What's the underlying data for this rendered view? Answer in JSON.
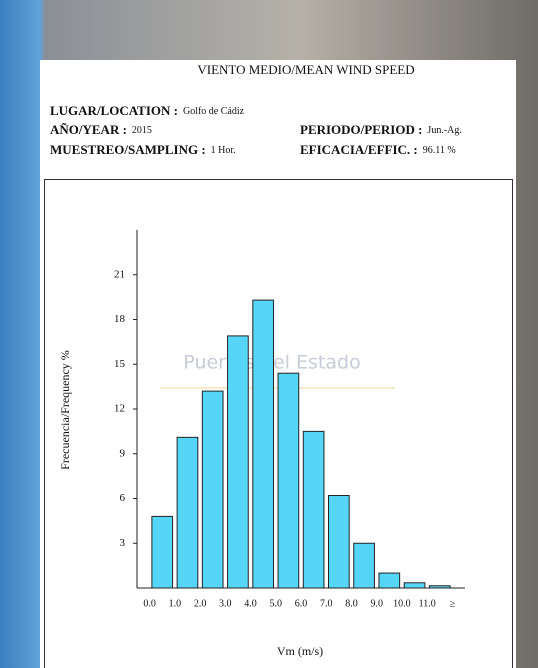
{
  "header": {
    "rows": [
      [
        {
          "label": "LUGAR/LOCATION :",
          "value": "Golfo de Cádiz"
        }
      ],
      [
        {
          "label": "AÑO/YEAR :",
          "value": "2015"
        },
        {
          "label": "PERIODO/PERIOD :",
          "value": "Jun.-Ag."
        }
      ],
      [
        {
          "label": "MUESTREO/SAMPLING :",
          "value": "1 Hor."
        },
        {
          "label": "EFICACIA/EFFIC. :",
          "value": "96.11 %"
        }
      ]
    ]
  },
  "chart_data": {
    "type": "histogram",
    "title": "VIENTO MEDIO/MEAN WIND SPEED",
    "watermark": "Puertos del Estado",
    "x_label": "Vm (m/s)",
    "y_label": "Frecuencia/Frequency %",
    "bins": [
      0,
      1,
      2,
      3,
      4,
      5,
      6,
      7,
      8,
      9,
      10,
      11,
      12
    ],
    "values": [
      4.8,
      10.1,
      13.2,
      16.9,
      19.3,
      14.4,
      10.5,
      6.2,
      3.0,
      1.0,
      0.35,
      0.15
    ],
    "color": "#55d6f7",
    "xlim": [
      -0.5,
      12.5
    ],
    "xticks": [
      {
        "value": 0,
        "label": "0.0"
      },
      {
        "value": 1,
        "label": "1.0"
      },
      {
        "value": 2,
        "label": "2.0"
      },
      {
        "value": 3,
        "label": "3.0"
      },
      {
        "value": 4,
        "label": "4.0"
      },
      {
        "value": 5,
        "label": "5.0"
      },
      {
        "value": 6,
        "label": "6.0"
      },
      {
        "value": 7,
        "label": "7.0"
      },
      {
        "value": 8,
        "label": "8.0"
      },
      {
        "value": 9,
        "label": "9.0"
      },
      {
        "value": 10,
        "label": "10.0"
      },
      {
        "value": 11,
        "label": "11.0"
      },
      {
        "value": 12,
        "label": "≥"
      }
    ],
    "ylim": [
      0,
      24
    ],
    "yticks": [
      3,
      6,
      9,
      12,
      15,
      18,
      21
    ]
  }
}
